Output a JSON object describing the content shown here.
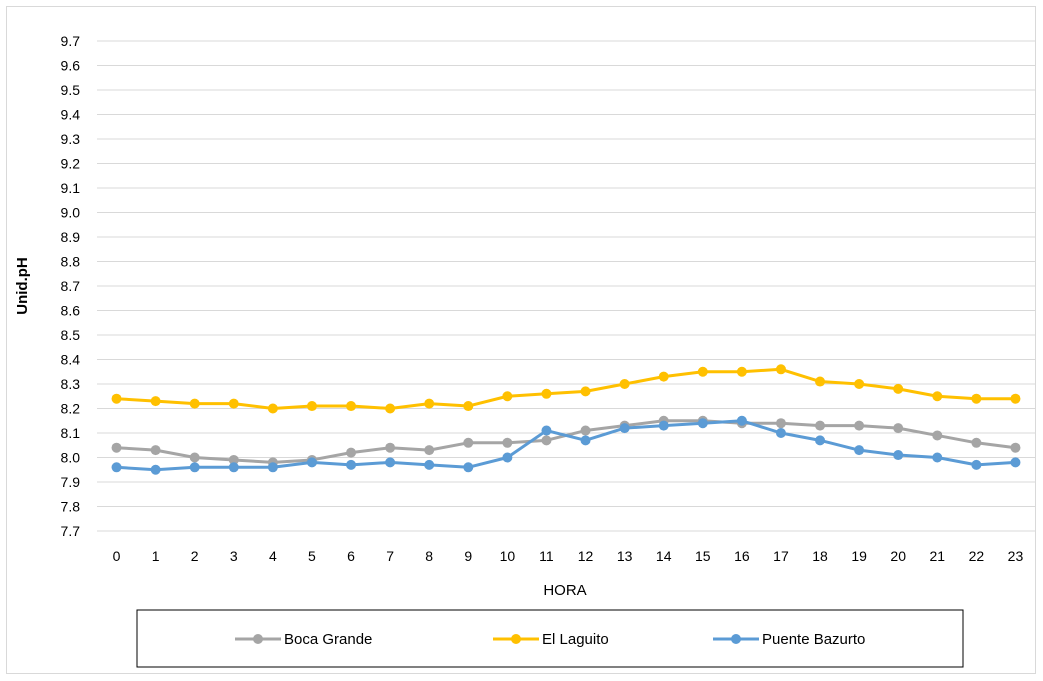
{
  "chart_data": {
    "type": "line",
    "title": "",
    "xlabel": "HORA",
    "ylabel": "Unid.pH",
    "x": [
      0,
      1,
      2,
      3,
      4,
      5,
      6,
      7,
      8,
      9,
      10,
      11,
      12,
      13,
      14,
      15,
      16,
      17,
      18,
      19,
      20,
      21,
      22,
      23
    ],
    "x_tick_labels": [
      "0",
      "1",
      "2",
      "3",
      "4",
      "5",
      "6",
      "7",
      "8",
      "9",
      "10",
      "11",
      "12",
      "13",
      "14",
      "15",
      "16",
      "17",
      "18",
      "19",
      "20",
      "21",
      "22",
      "23"
    ],
    "ylim": [
      7.7,
      9.7
    ],
    "y_ticks": [
      "7.7",
      "7.8",
      "7.9",
      "8.0",
      "8.1",
      "8.2",
      "8.3",
      "8.4",
      "8.5",
      "8.6",
      "8.7",
      "8.8",
      "8.9",
      "9.0",
      "9.1",
      "9.2",
      "9.3",
      "9.4",
      "9.5",
      "9.6",
      "9.7"
    ],
    "grid": true,
    "legend_position": "bottom",
    "series": [
      {
        "name": "Boca Grande",
        "color": "#a5a5a5",
        "values": [
          8.04,
          8.03,
          8.0,
          7.99,
          7.98,
          7.99,
          8.02,
          8.04,
          8.03,
          8.06,
          8.06,
          8.07,
          8.11,
          8.13,
          8.15,
          8.15,
          8.14,
          8.14,
          8.13,
          8.13,
          8.12,
          8.09,
          8.06,
          8.04
        ]
      },
      {
        "name": "El Laguito",
        "color": "#ffc000",
        "values": [
          8.24,
          8.23,
          8.22,
          8.22,
          8.2,
          8.21,
          8.21,
          8.2,
          8.22,
          8.21,
          8.25,
          8.26,
          8.27,
          8.3,
          8.33,
          8.35,
          8.35,
          8.36,
          8.31,
          8.3,
          8.28,
          8.25,
          8.24,
          8.24
        ]
      },
      {
        "name": "Puente Bazurto",
        "color": "#5b9bd5",
        "values": [
          7.96,
          7.95,
          7.96,
          7.96,
          7.96,
          7.98,
          7.97,
          7.98,
          7.97,
          7.96,
          8.0,
          8.11,
          8.07,
          8.12,
          8.13,
          8.14,
          8.15,
          8.1,
          8.07,
          8.03,
          8.01,
          8.0,
          7.97,
          7.98
        ]
      }
    ]
  }
}
